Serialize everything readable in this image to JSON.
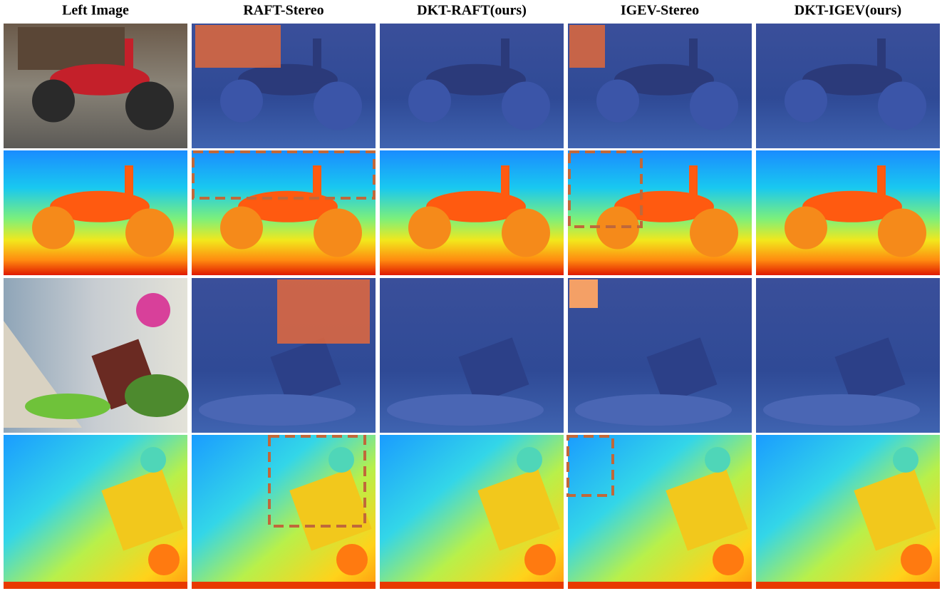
{
  "columns": [
    "Left Image",
    "RAFT-Stereo",
    "DKT-RAFT(ours)",
    "IGEV-Stereo",
    "DKT-IGEV(ours)"
  ]
}
